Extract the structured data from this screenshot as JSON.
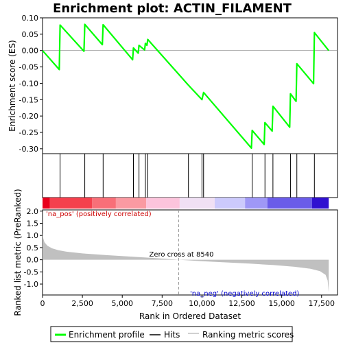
{
  "chart_data": {
    "type": "line",
    "title": "Enrichment plot: ACTIN_FILAMENT",
    "xlabel": "Rank in Ordered Dataset",
    "xlim": [
      0,
      18500
    ],
    "x_ticks": [
      0,
      2500,
      5000,
      7500,
      10000,
      12500,
      15000,
      17500
    ],
    "x_tick_labels": [
      "0",
      "2,500",
      "5,000",
      "7,500",
      "10,000",
      "12,500",
      "15,000",
      "17,500"
    ],
    "es_panel": {
      "ylabel": "Enrichment score (ES)",
      "ylim": [
        -0.315,
        0.1
      ],
      "y_ticks": [
        0.1,
        0.05,
        0.0,
        -0.05,
        -0.1,
        -0.15,
        -0.2,
        -0.25,
        -0.3
      ],
      "y_tick_labels": [
        "0.10",
        "0.05",
        "0.00",
        "-0.05",
        "-0.10",
        "-0.15",
        "-0.20",
        "-0.25",
        "-0.30"
      ],
      "series": [
        {
          "name": "Enrichment profile",
          "color": "#00ff00",
          "points": [
            [
              0,
              0.0
            ],
            [
              1050,
              -0.058
            ],
            [
              1100,
              0.078
            ],
            [
              2600,
              -0.002
            ],
            [
              2650,
              0.08
            ],
            [
              3750,
              0.018
            ],
            [
              3800,
              0.079
            ],
            [
              5650,
              -0.028
            ],
            [
              5700,
              0.008
            ],
            [
              6000,
              -0.008
            ],
            [
              6050,
              0.016
            ],
            [
              6400,
              0.002
            ],
            [
              6450,
              0.022
            ],
            [
              6550,
              0.016
            ],
            [
              6600,
              0.034
            ],
            [
              9100,
              -0.103
            ],
            [
              10000,
              -0.15
            ],
            [
              10100,
              -0.128
            ],
            [
              13100,
              -0.298
            ],
            [
              13150,
              -0.244
            ],
            [
              13900,
              -0.287
            ],
            [
              13950,
              -0.22
            ],
            [
              14400,
              -0.246
            ],
            [
              14450,
              -0.17
            ],
            [
              15500,
              -0.234
            ],
            [
              15550,
              -0.132
            ],
            [
              15900,
              -0.155
            ],
            [
              15950,
              -0.04
            ],
            [
              17000,
              -0.101
            ],
            [
              17050,
              0.055
            ],
            [
              17950,
              0.0
            ]
          ]
        }
      ]
    },
    "hits": [
      1100,
      2650,
      3800,
      5700,
      6050,
      6450,
      6600,
      9150,
      10000,
      10100,
      13150,
      13950,
      14450,
      15550,
      15950,
      17050
    ],
    "color_bar_segments": [
      {
        "from": 0,
        "to": 450,
        "color": "#e8001c"
      },
      {
        "from": 450,
        "to": 3100,
        "color": "#f5404d"
      },
      {
        "from": 3100,
        "to": 4600,
        "color": "#f86f78"
      },
      {
        "from": 4600,
        "to": 6500,
        "color": "#fa9aa2"
      },
      {
        "from": 6500,
        "to": 8600,
        "color": "#fcc4dc"
      },
      {
        "from": 8600,
        "to": 10800,
        "color": "#f0e0f4"
      },
      {
        "from": 10800,
        "to": 12700,
        "color": "#cccafc"
      },
      {
        "from": 12700,
        "to": 14100,
        "color": "#9f98f6"
      },
      {
        "from": 14100,
        "to": 16900,
        "color": "#6a5ce9"
      },
      {
        "from": 16900,
        "to": 17950,
        "color": "#3010d0"
      }
    ],
    "ranked_panel": {
      "ylabel": "Ranked list metric (PreRanked)",
      "ylim": [
        -1.45,
        2.05
      ],
      "y_ticks": [
        2.0,
        1.5,
        1.0,
        0.5,
        0.0,
        -0.5,
        -1.0
      ],
      "y_tick_labels": [
        "2.0",
        "1.5",
        "1.0",
        "0.5",
        "0.0",
        "-0.5",
        "-1.0"
      ],
      "series": [
        {
          "name": "Ranking metric scores",
          "color": "#c0c0c0",
          "points": [
            [
              0,
              1.1
            ],
            [
              40,
              0.9
            ],
            [
              120,
              0.72
            ],
            [
              300,
              0.58
            ],
            [
              600,
              0.47
            ],
            [
              1000,
              0.39
            ],
            [
              1500,
              0.33
            ],
            [
              2500,
              0.26
            ],
            [
              4000,
              0.19
            ],
            [
              5500,
              0.13
            ],
            [
              7000,
              0.07
            ],
            [
              8540,
              0.0
            ],
            [
              10000,
              -0.06
            ],
            [
              11500,
              -0.11
            ],
            [
              13000,
              -0.16
            ],
            [
              14500,
              -0.22
            ],
            [
              15800,
              -0.29
            ],
            [
              16800,
              -0.37
            ],
            [
              17400,
              -0.47
            ],
            [
              17750,
              -0.62
            ],
            [
              17880,
              -0.85
            ],
            [
              17950,
              -1.35
            ]
          ]
        }
      ],
      "zero_cross_rank": 8540,
      "zero_cross_label": "Zero cross at 8540",
      "pos_label": "'na_pos' (positively correlated)",
      "neg_label": "'na_neg' (negatively correlated)",
      "pos_color": "#cc0000",
      "neg_color": "#0000cc"
    },
    "legend": {
      "position": "bottom",
      "items": [
        {
          "label": "Enrichment profile",
          "color": "#00ff00"
        },
        {
          "label": "Hits",
          "color": "#000000"
        },
        {
          "label": "Ranking metric scores",
          "color": "#c0c0c0"
        }
      ]
    }
  }
}
